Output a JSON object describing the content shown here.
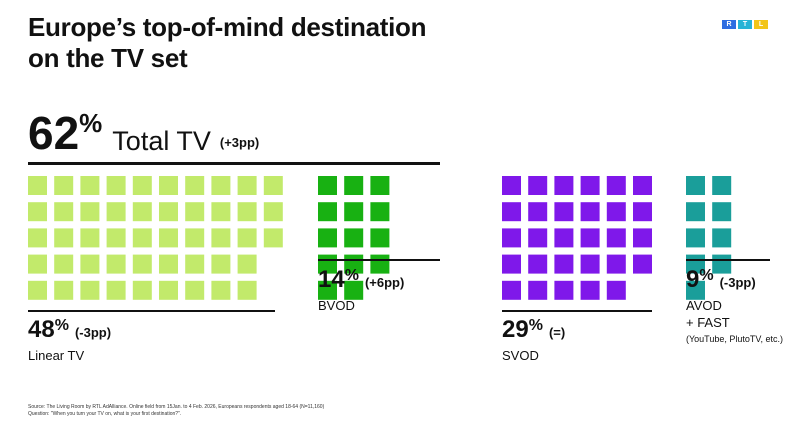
{
  "title": "Europe’s top-of-mind destination on the TV set",
  "logo": {
    "letters": [
      "R",
      "T",
      "L"
    ],
    "colors": [
      "#2f6de1",
      "#27b3d6",
      "#f2c518"
    ]
  },
  "total": {
    "value": "62",
    "unit": "%",
    "label": "Total TV",
    "change": "(+3pp)"
  },
  "segments": {
    "linear": {
      "value": "48",
      "unit": "%",
      "change": "(-3pp)",
      "label": "Linear TV",
      "color": "#c2ea6b"
    },
    "bvod": {
      "value": "14",
      "unit": "%",
      "change": "(+6pp)",
      "label": "BVOD",
      "color": "#18b112"
    },
    "svod": {
      "value": "29",
      "unit": "%",
      "change": "(=)",
      "label": "SVOD",
      "color": "#7f18ea"
    },
    "avod": {
      "value": "9",
      "unit": "%",
      "change": "(-3pp)",
      "label_line1": "AVOD",
      "label_line2": "+ FAST",
      "sublabel": "(YouTube, PlutoTV, etc.)",
      "color": "#1a9e9a"
    }
  },
  "chart_data": {
    "type": "waffle",
    "title": "Europe’s top-of-mind destination on the TV set",
    "total": {
      "name": "Total TV",
      "value": 62,
      "change": "+3pp"
    },
    "categories": [
      "Linear TV",
      "BVOD",
      "SVOD",
      "AVOD + FAST"
    ],
    "values": [
      48,
      14,
      29,
      9
    ],
    "changes": [
      "-3pp",
      "+6pp",
      "=",
      "-3pp"
    ],
    "unit": "%"
  },
  "source": {
    "line1": "Source: The Living Room by RTL AdAlliance. Online field from 15Jan. to 4 Feb. 2026, Europeans respondents aged 18-64 (N=11,160)",
    "line2": "Question: \"When you turn your TV on, what is your first destination?\"."
  }
}
